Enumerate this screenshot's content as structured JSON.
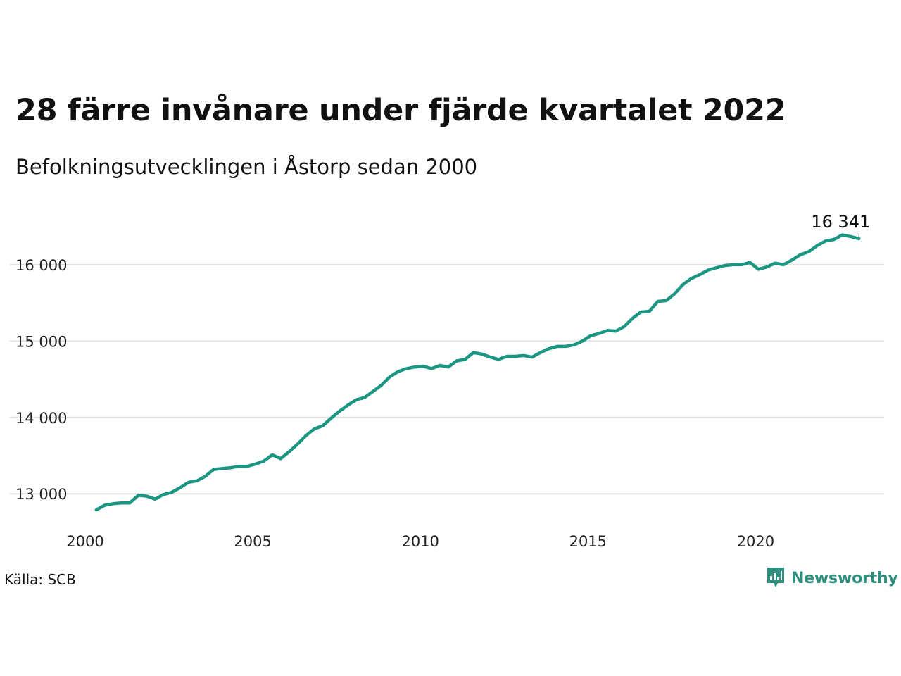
{
  "header": {
    "title": "28 färre invånare under fjärde kvartalet 2022",
    "subtitle": "Befolkningsutvecklingen i Åstorp sedan 2000"
  },
  "footer": {
    "source": "Källa: SCB",
    "brand": "Newsworthy"
  },
  "colors": {
    "line": "#1a9683",
    "grid": "#e2e2e2",
    "brand": "#2f8f7e"
  },
  "chart_data": {
    "type": "line",
    "title": "28 färre invånare under fjärde kvartalet 2022",
    "subtitle": "Befolkningsutvecklingen i Åstorp sedan 2000",
    "xlabel": "",
    "ylabel": "",
    "x_ticks": [
      2000,
      2005,
      2010,
      2015,
      2020
    ],
    "x_tick_labels": [
      "2000",
      "2005",
      "2010",
      "2015",
      "2020"
    ],
    "y_ticks": [
      13000,
      14000,
      15000,
      16000
    ],
    "y_tick_labels": [
      "13 000",
      "14 000",
      "15 000",
      "16 000"
    ],
    "xlim": [
      2000,
      2023.75
    ],
    "ylim": [
      12550,
      16700
    ],
    "grid": "horizontal",
    "legend": "none",
    "end_label": "16 341",
    "series": [
      {
        "x": [
          2000.25,
          2000.5,
          2000.75,
          2001.0,
          2001.25,
          2001.5,
          2001.75,
          2002.0,
          2002.25,
          2002.5,
          2002.75,
          2003.0,
          2003.25,
          2003.5,
          2003.75,
          2004.0,
          2004.25,
          2004.5,
          2004.75,
          2005.0,
          2005.25,
          2005.5,
          2005.75,
          2006.0,
          2006.25,
          2006.5,
          2006.75,
          2007.0,
          2007.25,
          2007.5,
          2007.75,
          2008.0,
          2008.25,
          2008.5,
          2008.75,
          2009.0,
          2009.25,
          2009.5,
          2009.75,
          2010.0,
          2010.25,
          2010.5,
          2010.75,
          2011.0,
          2011.25,
          2011.5,
          2011.75,
          2012.0,
          2012.25,
          2012.5,
          2012.75,
          2013.0,
          2013.25,
          2013.5,
          2013.75,
          2014.0,
          2014.25,
          2014.5,
          2014.75,
          2015.0,
          2015.25,
          2015.5,
          2015.75,
          2016.0,
          2016.25,
          2016.5,
          2016.75,
          2017.0,
          2017.25,
          2017.5,
          2017.75,
          2018.0,
          2018.25,
          2018.5,
          2018.75,
          2019.0,
          2019.25,
          2019.5,
          2019.75,
          2020.0,
          2020.25,
          2020.5,
          2020.75,
          2021.0,
          2021.25,
          2021.5,
          2021.75,
          2022.0,
          2022.25,
          2022.5,
          2022.75,
          2023.0
        ],
        "y": [
          12790,
          12850,
          12870,
          12880,
          12880,
          12980,
          12970,
          12930,
          12990,
          13020,
          13080,
          13150,
          13170,
          13230,
          13320,
          13330,
          13340,
          13360,
          13360,
          13390,
          13430,
          13510,
          13460,
          13550,
          13650,
          13760,
          13850,
          13890,
          13990,
          14080,
          14160,
          14230,
          14260,
          14340,
          14420,
          14530,
          14600,
          14640,
          14660,
          14670,
          14640,
          14680,
          14660,
          14740,
          14760,
          14850,
          14830,
          14790,
          14760,
          14800,
          14800,
          14810,
          14790,
          14850,
          14900,
          14930,
          14930,
          14950,
          15000,
          15070,
          15100,
          15140,
          15130,
          15190,
          15300,
          15380,
          15390,
          15520,
          15530,
          15620,
          15740,
          15820,
          15870,
          15930,
          15960,
          15990,
          16000,
          16000,
          16030,
          15940,
          15970,
          16020,
          16000,
          16060,
          16130,
          16170,
          16250,
          16310,
          16330,
          16390,
          16369,
          16341
        ]
      }
    ]
  }
}
